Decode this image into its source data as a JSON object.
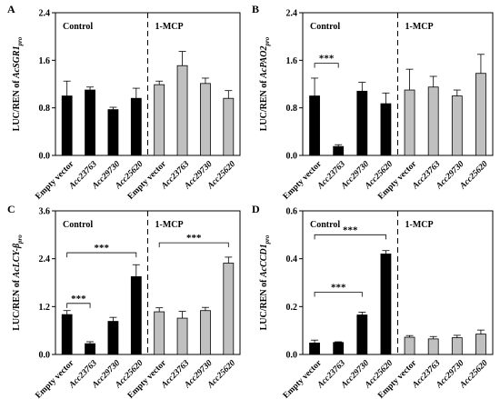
{
  "chart_data": [
    {
      "type": "bar",
      "panel": "A",
      "ylabel": "LUC/REN of AcSGR1",
      "ylabel_sub": "pro",
      "ylim": [
        0,
        2.4
      ],
      "yticks": [
        "0.0",
        "0.8",
        "1.6",
        "2.4"
      ],
      "groups": [
        "Control",
        "1-MCP"
      ],
      "categories": [
        "Empty vector",
        "Acc23763",
        "Acc29730",
        "Acc25620"
      ],
      "series": [
        {
          "name": "Control",
          "values": [
            1.0,
            1.1,
            0.77,
            0.96
          ],
          "errors": [
            0.25,
            0.05,
            0.04,
            0.17
          ],
          "color": "#000000"
        },
        {
          "name": "1-MCP",
          "values": [
            1.19,
            1.51,
            1.21,
            0.96
          ],
          "errors": [
            0.06,
            0.24,
            0.09,
            0.13
          ],
          "color": "#c0c0c0"
        }
      ],
      "brackets": []
    },
    {
      "type": "bar",
      "panel": "B",
      "ylabel": "LUC/REN of AcPAO2",
      "ylabel_sub": "pro",
      "ylim": [
        0,
        2.4
      ],
      "yticks": [
        "0.0",
        "0.8",
        "1.6",
        "2.4"
      ],
      "groups": [
        "Control",
        "1-MCP"
      ],
      "categories": [
        "Empty vector",
        "Acc23763",
        "Acc29730",
        "Acc25620"
      ],
      "series": [
        {
          "name": "Control",
          "values": [
            1.0,
            0.15,
            1.08,
            0.87
          ],
          "errors": [
            0.3,
            0.03,
            0.15,
            0.18
          ],
          "color": "#000000"
        },
        {
          "name": "1-MCP",
          "values": [
            1.1,
            1.15,
            1.0,
            1.38
          ],
          "errors": [
            0.35,
            0.18,
            0.1,
            0.32
          ],
          "color": "#c0c0c0"
        }
      ],
      "brackets": [
        {
          "series": 0,
          "from": 0,
          "to": 1,
          "y": 1.55,
          "label": "***"
        }
      ]
    },
    {
      "type": "bar",
      "panel": "C",
      "ylabel": "LUC/REN of AcLCY-β",
      "ylabel_sub": "pro",
      "ylim": [
        0,
        3.6
      ],
      "yticks": [
        "0.0",
        "1.2",
        "2.4",
        "3.6"
      ],
      "groups": [
        "Control",
        "1-MCP"
      ],
      "categories": [
        "Empty vector",
        "Acc23763",
        "Acc29730",
        "Acc25620"
      ],
      "series": [
        {
          "name": "Control",
          "values": [
            1.0,
            0.27,
            0.83,
            1.95
          ],
          "errors": [
            0.1,
            0.05,
            0.1,
            0.3
          ],
          "color": "#000000"
        },
        {
          "name": "1-MCP",
          "values": [
            1.07,
            0.91,
            1.1,
            2.29
          ],
          "errors": [
            0.1,
            0.17,
            0.08,
            0.15
          ],
          "color": "#c0c0c0"
        }
      ],
      "brackets": [
        {
          "series": 0,
          "from": 0,
          "to": 1,
          "y": 1.28,
          "label": "***"
        },
        {
          "series": 0,
          "from": 0,
          "to": 3,
          "y": 2.55,
          "label": "***"
        },
        {
          "series": 1,
          "from": 0,
          "to": 3,
          "y": 2.8,
          "label": "***"
        }
      ]
    },
    {
      "type": "bar",
      "panel": "D",
      "ylabel": "LUC/REN of AcCCD1",
      "ylabel_sub": "pro",
      "ylim": [
        0,
        0.6
      ],
      "yticks": [
        "0.0",
        "0.2",
        "0.4",
        "0.6"
      ],
      "groups": [
        "Control",
        "1-MCP"
      ],
      "categories": [
        "Empty vector",
        "Acc23763",
        "Acc29730",
        "Acc25620"
      ],
      "series": [
        {
          "name": "Control",
          "values": [
            0.048,
            0.05,
            0.165,
            0.42
          ],
          "errors": [
            0.012,
            0.003,
            0.012,
            0.014
          ],
          "color": "#000000"
        },
        {
          "name": "1-MCP",
          "values": [
            0.072,
            0.065,
            0.07,
            0.085
          ],
          "errors": [
            0.007,
            0.01,
            0.01,
            0.017
          ],
          "color": "#c0c0c0"
        }
      ],
      "brackets": [
        {
          "series": 0,
          "from": 0,
          "to": 2,
          "y": 0.26,
          "label": "***"
        },
        {
          "series": 0,
          "from": 0,
          "to": 3,
          "y": 0.5,
          "label": "***"
        }
      ]
    }
  ]
}
